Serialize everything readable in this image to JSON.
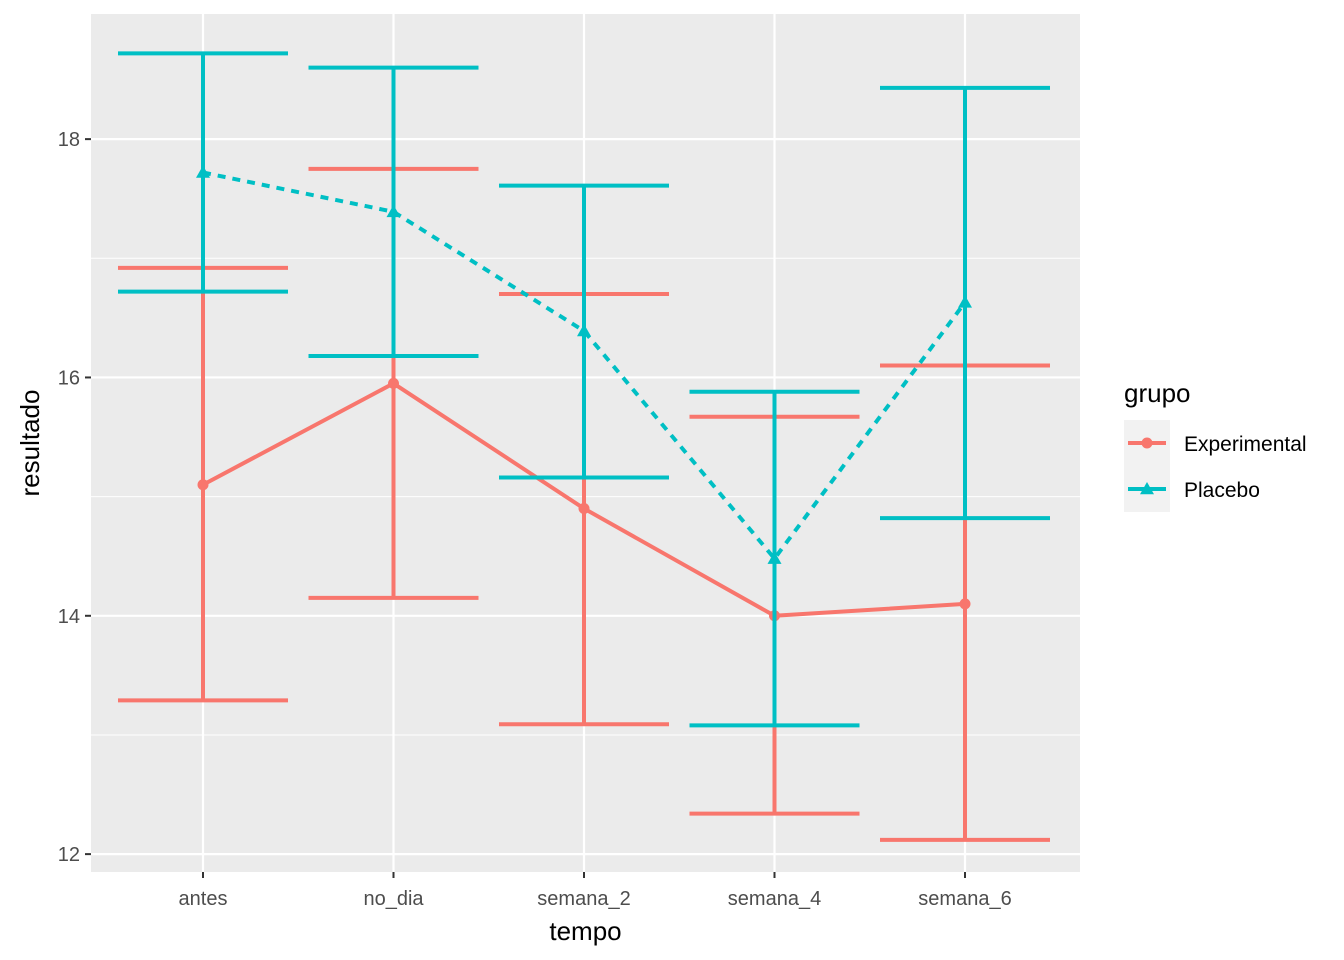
{
  "chart_data": {
    "type": "line",
    "title": "",
    "xlabel": "tempo",
    "ylabel": "resultado",
    "categories": [
      "antes",
      "no_dia",
      "semana_2",
      "semana_4",
      "semana_6"
    ],
    "ylim": [
      11.85,
      19.05
    ],
    "yticks": [
      12,
      14,
      16,
      18
    ],
    "ytick_labels": [
      "12",
      "14",
      "16",
      "18"
    ],
    "grid": true,
    "legend": {
      "title": "grupo",
      "position": "right"
    },
    "series": [
      {
        "name": "Experimental",
        "color": "#F8766D",
        "linetype": "solid",
        "marker": "circle",
        "values": [
          15.1,
          15.95,
          14.9,
          14.0,
          14.1
        ],
        "lower": [
          13.29,
          14.15,
          13.09,
          12.34,
          12.12
        ],
        "upper": [
          16.92,
          17.75,
          16.7,
          15.67,
          16.1
        ]
      },
      {
        "name": "Placebo",
        "color": "#00BFC4",
        "linetype": "dashed",
        "marker": "triangle",
        "values": [
          17.72,
          17.39,
          16.39,
          14.48,
          16.63
        ],
        "lower": [
          16.72,
          16.18,
          15.16,
          13.08,
          14.82
        ],
        "upper": [
          18.72,
          18.6,
          17.61,
          15.88,
          18.43
        ]
      }
    ]
  }
}
